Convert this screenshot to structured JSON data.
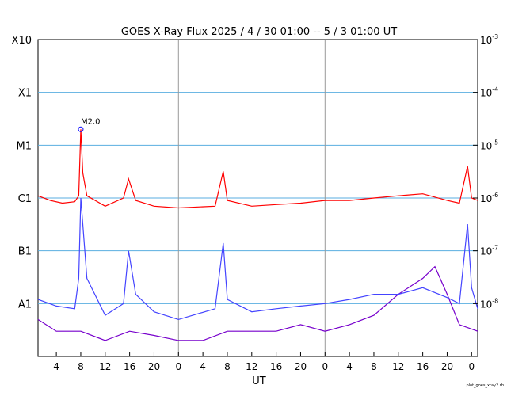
{
  "chart_data": {
    "type": "line",
    "title": "GOES X-Ray Flux   2025 /  4 / 30   01:00 --  5 /  3   01:00   UT",
    "xlabel": "UT",
    "x_range_hours_ut": [
      "2025-04-30 01:00",
      "2025-05-03 01:00"
    ],
    "x_tick_labels": [
      "4",
      "8",
      "12",
      "16",
      "20",
      "0",
      "4",
      "8",
      "12",
      "16",
      "20",
      "0",
      "4",
      "8",
      "12",
      "16",
      "20",
      "0"
    ],
    "day_boundaries": [
      "2025-05-01 00:00",
      "2025-05-02 00:00"
    ],
    "y_scale": "log",
    "ylim": [
      1e-09,
      0.001
    ],
    "left_axis_labels": [
      "X10",
      "X1",
      "M1",
      "C1",
      "B1",
      "A1"
    ],
    "right_axis_labels": [
      "10^-3",
      "10^-4",
      "10^-5",
      "10^-6",
      "10^-7",
      "10^-8"
    ],
    "grid_levels": [
      0.0001,
      1e-05,
      1e-06,
      1e-07,
      1e-08
    ],
    "annotation": {
      "text": "M2.0",
      "time": "2025-04-30 08:00",
      "flux": 2e-05
    },
    "series": [
      {
        "color": "#ff0000",
        "points": [
          [
            "2025-04-30 01:00",
            1.1e-06
          ],
          [
            "2025-04-30 03:00",
            9e-07
          ],
          [
            "2025-04-30 05:00",
            8e-07
          ],
          [
            "2025-04-30 07:00",
            8.5e-07
          ],
          [
            "2025-04-30 07:40",
            1.1e-06
          ],
          [
            "2025-04-30 08:00",
            2e-05
          ],
          [
            "2025-04-30 08:20",
            3e-06
          ],
          [
            "2025-04-30 09:00",
            1.1e-06
          ],
          [
            "2025-04-30 12:00",
            7e-07
          ],
          [
            "2025-04-30 15:00",
            1e-06
          ],
          [
            "2025-04-30 15:50",
            2.3e-06
          ],
          [
            "2025-04-30 17:00",
            9e-07
          ],
          [
            "2025-04-30 20:00",
            7e-07
          ],
          [
            "2025-05-01 00:00",
            6.5e-07
          ],
          [
            "2025-05-01 06:00",
            7e-07
          ],
          [
            "2025-05-01 07:20",
            3.2e-06
          ],
          [
            "2025-05-01 08:00",
            9e-07
          ],
          [
            "2025-05-01 12:00",
            7e-07
          ],
          [
            "2025-05-01 16:00",
            7.5e-07
          ],
          [
            "2025-05-01 20:00",
            8e-07
          ],
          [
            "2025-05-02 00:00",
            9e-07
          ],
          [
            "2025-05-02 04:00",
            9e-07
          ],
          [
            "2025-05-02 08:00",
            1e-06
          ],
          [
            "2025-05-02 12:00",
            1.1e-06
          ],
          [
            "2025-05-02 16:00",
            1.2e-06
          ],
          [
            "2025-05-02 20:00",
            9e-07
          ],
          [
            "2025-05-02 22:00",
            8e-07
          ],
          [
            "2025-05-02 23:20",
            4e-06
          ],
          [
            "2025-05-03 00:00",
            1e-06
          ],
          [
            "2025-05-03 01:00",
            9e-07
          ]
        ]
      },
      {
        "color": "#4444ff",
        "points": [
          [
            "2025-04-30 01:00",
            1.2e-08
          ],
          [
            "2025-04-30 04:00",
            9e-09
          ],
          [
            "2025-04-30 07:00",
            8e-09
          ],
          [
            "2025-04-30 07:40",
            3e-08
          ],
          [
            "2025-04-30 08:00",
            1e-06
          ],
          [
            "2025-04-30 09:00",
            3e-08
          ],
          [
            "2025-04-30 12:00",
            6e-09
          ],
          [
            "2025-04-30 15:00",
            1e-08
          ],
          [
            "2025-04-30 15:50",
            1e-07
          ],
          [
            "2025-04-30 17:00",
            1.5e-08
          ],
          [
            "2025-04-30 20:00",
            7e-09
          ],
          [
            "2025-05-01 00:00",
            5e-09
          ],
          [
            "2025-05-01 06:00",
            8e-09
          ],
          [
            "2025-05-01 07:20",
            1.4e-07
          ],
          [
            "2025-05-01 08:00",
            1.2e-08
          ],
          [
            "2025-05-01 12:00",
            7e-09
          ],
          [
            "2025-05-01 16:00",
            8e-09
          ],
          [
            "2025-05-01 20:00",
            9e-09
          ],
          [
            "2025-05-02 00:00",
            1e-08
          ],
          [
            "2025-05-02 04:00",
            1.2e-08
          ],
          [
            "2025-05-02 08:00",
            1.5e-08
          ],
          [
            "2025-05-02 12:00",
            1.5e-08
          ],
          [
            "2025-05-02 16:00",
            2e-08
          ],
          [
            "2025-05-02 20:00",
            1.3e-08
          ],
          [
            "2025-05-02 22:00",
            1e-08
          ],
          [
            "2025-05-02 23:20",
            3.2e-07
          ],
          [
            "2025-05-03 00:00",
            2e-08
          ],
          [
            "2025-05-03 01:00",
            8e-09
          ]
        ]
      },
      {
        "color": "#7700cc",
        "points": [
          [
            "2025-04-30 01:00",
            5e-09
          ],
          [
            "2025-04-30 04:00",
            3e-09
          ],
          [
            "2025-04-30 08:00",
            3e-09
          ],
          [
            "2025-04-30 12:00",
            2e-09
          ],
          [
            "2025-04-30 16:00",
            3e-09
          ],
          [
            "2025-04-30 20:00",
            2.5e-09
          ],
          [
            "2025-05-01 00:00",
            2e-09
          ],
          [
            "2025-05-01 04:00",
            2e-09
          ],
          [
            "2025-05-01 08:00",
            3e-09
          ],
          [
            "2025-05-01 12:00",
            3e-09
          ],
          [
            "2025-05-01 16:00",
            3e-09
          ],
          [
            "2025-05-01 20:00",
            4e-09
          ],
          [
            "2025-05-02 00:00",
            3e-09
          ],
          [
            "2025-05-02 04:00",
            4e-09
          ],
          [
            "2025-05-02 08:00",
            6e-09
          ],
          [
            "2025-05-02 12:00",
            1.5e-08
          ],
          [
            "2025-05-02 16:00",
            3e-08
          ],
          [
            "2025-05-02 18:00",
            5e-08
          ],
          [
            "2025-05-02 20:00",
            1.5e-08
          ],
          [
            "2025-05-02 22:00",
            4e-09
          ],
          [
            "2025-05-03 01:00",
            3e-09
          ]
        ]
      }
    ],
    "footer_credit": "plot_goes_xray2.rb"
  },
  "colors": {
    "grid": "#5aaee0",
    "day_line": "#999999",
    "axis": "#000000",
    "annotation_marker": "#0000ff"
  }
}
